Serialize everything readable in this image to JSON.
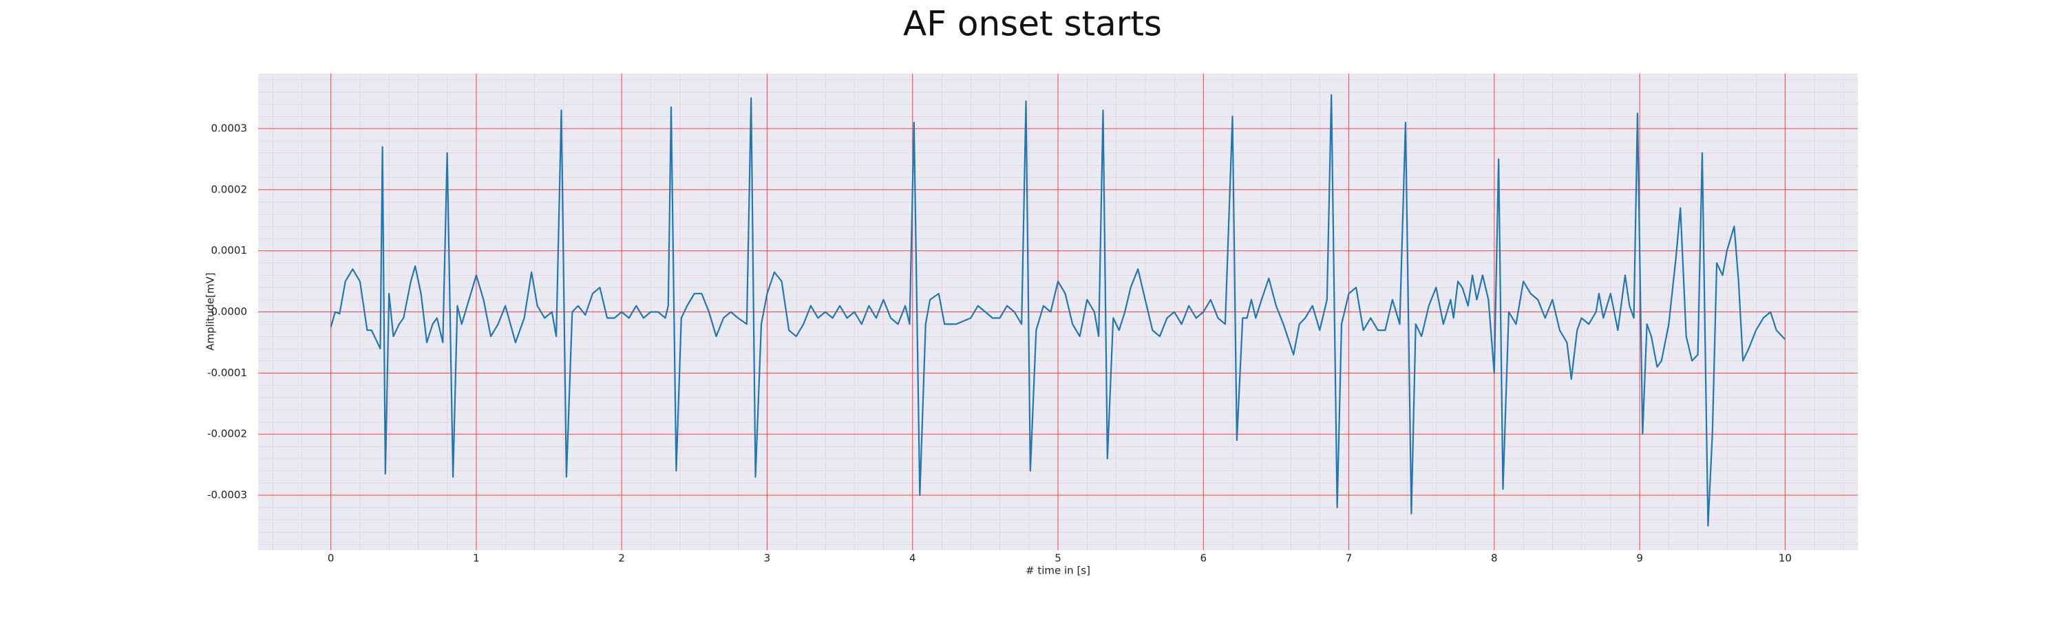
{
  "chart_data": {
    "type": "line",
    "title": "AF onset starts",
    "xlabel": "# time in [s]",
    "ylabel": "Amplitude[mV]",
    "color": "#1f77b4",
    "grid": true,
    "minor_grid": true,
    "xlim": [
      -0.5,
      10.5
    ],
    "ylim": [
      -0.00039,
      0.00039
    ],
    "xticks": [
      0,
      1,
      2,
      3,
      4,
      5,
      6,
      7,
      8,
      9,
      10
    ],
    "yticks": [
      -0.0003,
      -0.0002,
      -0.0001,
      {
        "value": 0,
        "label": "0.0000"
      },
      0.0001,
      0.0002,
      0.0003
    ],
    "x": [
      0,
      0.03,
      0.06,
      0.1,
      0.15,
      0.2,
      0.25,
      0.28,
      0.3,
      0.34,
      0.355,
      0.375,
      0.4,
      0.43,
      0.47,
      0.5,
      0.55,
      0.58,
      0.62,
      0.66,
      0.7,
      0.73,
      0.77,
      0.8,
      0.84,
      0.87,
      0.9,
      0.95,
      1.0,
      1.05,
      1.1,
      1.15,
      1.2,
      1.27,
      1.33,
      1.38,
      1.42,
      1.47,
      1.52,
      1.55,
      1.585,
      1.62,
      1.66,
      1.7,
      1.75,
      1.8,
      1.85,
      1.9,
      1.95,
      2.0,
      2.05,
      2.1,
      2.15,
      2.2,
      2.25,
      2.3,
      2.32,
      2.34,
      2.375,
      2.41,
      2.45,
      2.5,
      2.55,
      2.6,
      2.65,
      2.7,
      2.75,
      2.8,
      2.86,
      2.89,
      2.92,
      2.96,
      3.0,
      3.05,
      3.1,
      3.15,
      3.2,
      3.25,
      3.3,
      3.35,
      3.4,
      3.45,
      3.5,
      3.55,
      3.6,
      3.65,
      3.7,
      3.75,
      3.8,
      3.85,
      3.9,
      3.95,
      3.98,
      4.01,
      4.05,
      4.09,
      4.12,
      4.18,
      4.22,
      4.3,
      4.4,
      4.45,
      4.5,
      4.55,
      4.6,
      4.65,
      4.7,
      4.75,
      4.78,
      4.81,
      4.85,
      4.9,
      4.95,
      5.0,
      5.05,
      5.1,
      5.15,
      5.2,
      5.25,
      5.28,
      5.31,
      5.34,
      5.38,
      5.42,
      5.46,
      5.5,
      5.55,
      5.6,
      5.65,
      5.7,
      5.75,
      5.8,
      5.85,
      5.9,
      5.95,
      6.0,
      6.05,
      6.1,
      6.15,
      6.2,
      6.23,
      6.27,
      6.3,
      6.33,
      6.36,
      6.4,
      6.45,
      6.5,
      6.55,
      6.62,
      6.66,
      6.7,
      6.75,
      6.8,
      6.85,
      6.88,
      6.92,
      6.95,
      7.0,
      7.05,
      7.1,
      7.15,
      7.2,
      7.25,
      7.3,
      7.35,
      7.39,
      7.43,
      7.46,
      7.5,
      7.55,
      7.6,
      7.65,
      7.7,
      7.72,
      7.75,
      7.78,
      7.82,
      7.85,
      7.88,
      7.92,
      7.96,
      7.98,
      8.0,
      8.03,
      8.06,
      8.1,
      8.15,
      8.2,
      8.25,
      8.3,
      8.35,
      8.4,
      8.45,
      8.5,
      8.53,
      8.57,
      8.6,
      8.65,
      8.7,
      8.72,
      8.75,
      8.8,
      8.85,
      8.9,
      8.93,
      8.96,
      8.985,
      9.02,
      9.05,
      9.08,
      9.12,
      9.15,
      9.2,
      9.25,
      9.28,
      9.32,
      9.36,
      9.4,
      9.43,
      9.47,
      9.5,
      9.53,
      9.57,
      9.6,
      9.65,
      9.68,
      9.71,
      9.75,
      9.8,
      9.85,
      9.9,
      9.94,
      10.0
    ],
    "values": [
      -2.5e-05,
      0,
      -3e-06,
      5e-05,
      7e-05,
      5e-05,
      -3e-05,
      -3e-05,
      -4e-05,
      -6e-05,
      0.00027,
      -0.000265,
      3e-05,
      -4e-05,
      -2e-05,
      -1e-05,
      5e-05,
      7.5e-05,
      3e-05,
      -5e-05,
      -2e-05,
      -1e-05,
      -5e-05,
      0.00026,
      -0.00027,
      1e-05,
      -2e-05,
      2e-05,
      6e-05,
      2e-05,
      -4e-05,
      -2e-05,
      1e-05,
      -5e-05,
      -1e-05,
      6.5e-05,
      1e-05,
      -1e-05,
      0,
      -4e-05,
      0.00033,
      -0.00027,
      0,
      1e-05,
      -5e-06,
      3e-05,
      4e-05,
      -1e-05,
      -1e-05,
      0,
      -1e-05,
      1e-05,
      -1e-05,
      0,
      0,
      -1e-05,
      1e-05,
      0.000335,
      -0.00026,
      -1e-05,
      1e-05,
      3e-05,
      3e-05,
      0,
      -4e-05,
      -1e-05,
      0,
      -1e-05,
      -2e-05,
      0.00035,
      -0.00027,
      -2e-05,
      3e-05,
      6.5e-05,
      5e-05,
      -3e-05,
      -4e-05,
      -2e-05,
      1e-05,
      -1e-05,
      0,
      -1e-05,
      1e-05,
      -1e-05,
      0,
      -2e-05,
      1e-05,
      -1e-05,
      2e-05,
      -1e-05,
      -2e-05,
      1e-05,
      -2e-05,
      0.00031,
      -0.0003,
      -2e-05,
      2e-05,
      3e-05,
      -2e-05,
      -2e-05,
      -1e-05,
      1e-05,
      0,
      -1e-05,
      -1e-05,
      1e-05,
      0,
      -2e-05,
      0.000345,
      -0.00026,
      -3e-05,
      1e-05,
      0,
      5e-05,
      3e-05,
      -2e-05,
      -4e-05,
      2e-05,
      0,
      -4e-05,
      0.00033,
      -0.00024,
      -1e-05,
      -3e-05,
      0,
      4e-05,
      7e-05,
      2e-05,
      -3e-05,
      -4e-05,
      -1e-05,
      0,
      -2e-05,
      1e-05,
      -1e-05,
      0,
      2e-05,
      -1e-05,
      -2e-05,
      0.00032,
      -0.00021,
      -1e-05,
      -1e-05,
      2e-05,
      -1e-05,
      2e-05,
      5.5e-05,
      1e-05,
      -2e-05,
      -7e-05,
      -2e-05,
      -1e-05,
      1e-05,
      -3e-05,
      2e-05,
      0.000355,
      -0.00032,
      -2e-05,
      3e-05,
      4e-05,
      -3e-05,
      -1e-05,
      -3e-05,
      -3e-05,
      2e-05,
      -2e-05,
      0.00031,
      -0.00033,
      -2e-05,
      -4e-05,
      1e-05,
      4e-05,
      -2e-05,
      2e-05,
      -1e-05,
      5e-05,
      4e-05,
      1e-05,
      6e-05,
      2e-05,
      6e-05,
      2e-05,
      -4e-05,
      -0.0001,
      0.00025,
      -0.00029,
      0,
      -2e-05,
      5e-05,
      3e-05,
      2e-05,
      -1e-05,
      2e-05,
      -3e-05,
      -5e-05,
      -0.00011,
      -3e-05,
      -1e-05,
      -2e-05,
      0,
      3e-05,
      -1e-05,
      3e-05,
      -3e-05,
      6e-05,
      1e-05,
      -1e-05,
      0.000325,
      -0.0002,
      -2e-05,
      -4e-05,
      -9e-05,
      -8e-05,
      -2e-05,
      9e-05,
      0.00017,
      -4e-05,
      -8e-05,
      -7e-05,
      0.00026,
      -0.00035,
      -0.0002,
      8e-05,
      6e-05,
      0.0001,
      0.00014,
      5e-05,
      -8e-05,
      -6e-05,
      -3e-05,
      -1e-05,
      0,
      -3e-05,
      -4.5e-05
    ]
  }
}
